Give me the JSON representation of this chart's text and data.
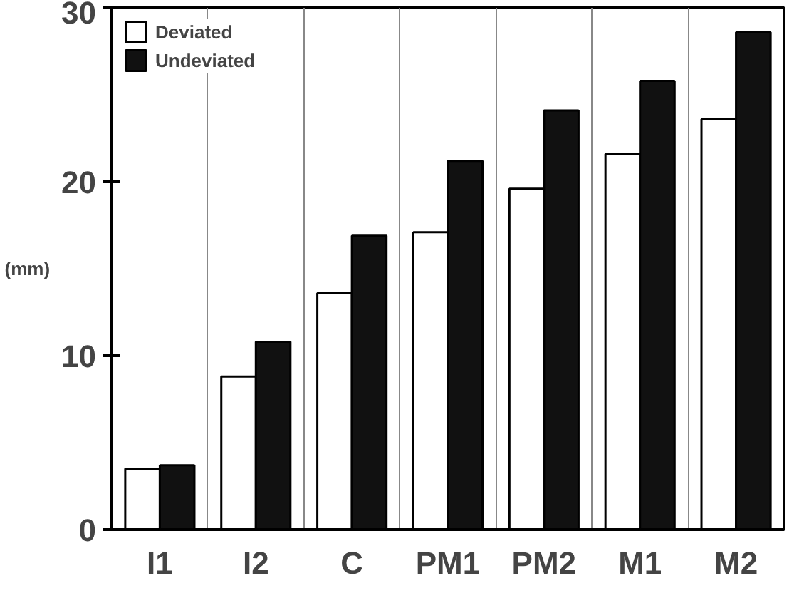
{
  "chart_data": {
    "type": "bar",
    "ylabel": "(mm)",
    "categories": [
      "I1",
      "I2",
      "C",
      "PM1",
      "PM2",
      "M1",
      "M2"
    ],
    "series": [
      {
        "name": "Deviated",
        "color": "#ffffff",
        "values": [
          3.5,
          8.8,
          13.6,
          17.1,
          19.6,
          21.6,
          23.6
        ]
      },
      {
        "name": "Undeviated",
        "color": "#111111",
        "values": [
          3.7,
          10.8,
          16.9,
          21.2,
          24.1,
          25.8,
          28.6
        ]
      }
    ],
    "ylim": [
      0,
      30
    ],
    "yticks": [
      0,
      10,
      20,
      30
    ],
    "grid": "x",
    "legend": "top left"
  }
}
